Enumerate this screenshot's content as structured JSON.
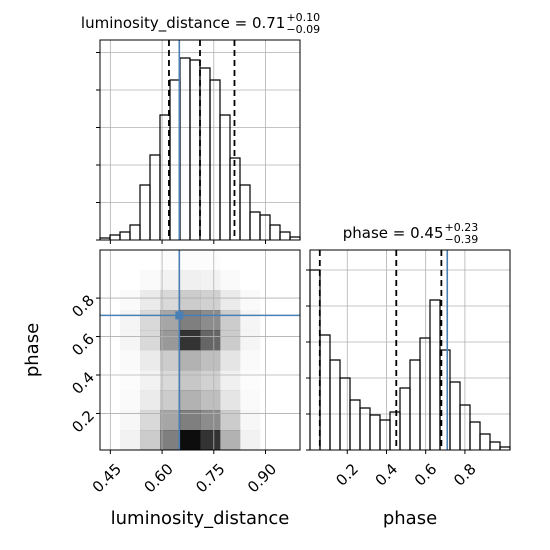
{
  "chart_data": [
    {
      "type": "hist",
      "title": "luminosity_distance = 0.71",
      "title_upper": "+0.10",
      "title_lower": "−0.09",
      "bins": [
        0.42,
        0.449,
        0.478,
        0.507,
        0.536,
        0.565,
        0.594,
        0.623,
        0.652,
        0.681,
        0.71,
        0.739,
        0.768,
        0.797,
        0.826,
        0.855,
        0.884,
        0.913,
        0.942,
        0.971,
        1.0
      ],
      "counts": [
        2,
        5,
        8,
        15,
        55,
        85,
        125,
        160,
        182,
        180,
        172,
        160,
        125,
        82,
        55,
        28,
        25,
        15,
        8,
        3
      ],
      "color": "#000000",
      "xlim": [
        0.42,
        1.0
      ],
      "ylim": [
        0,
        200
      ],
      "xticks": [
        0.45,
        0.6,
        0.75,
        0.9
      ],
      "yticks": [
        0,
        37.5,
        75,
        112.5,
        150,
        187.5
      ],
      "quantiles": [
        0.62,
        0.71,
        0.81
      ],
      "truth": 0.65,
      "truth_color": "#4a7fb5",
      "grid": true
    },
    {
      "type": "hist2d",
      "xlabel": "luminosity_distance",
      "ylabel": "phase",
      "xlim": [
        0.42,
        1.0
      ],
      "ylim": [
        0.01,
        1.05
      ],
      "xticks": [
        {
          "value": 0.45,
          "label": "0.45"
        },
        {
          "value": 0.6,
          "label": "0.60"
        },
        {
          "value": 0.75,
          "label": "0.75"
        },
        {
          "value": 0.9,
          "label": "0.90"
        }
      ],
      "yticks": [
        0.2,
        0.4,
        0.6,
        0.8
      ],
      "density": {
        "xbins": [
          0.42,
          0.478,
          0.536,
          0.594,
          0.652,
          0.71,
          0.768,
          0.826,
          0.884,
          0.942,
          1.0
        ],
        "ybins": [
          0.01,
          0.114,
          0.218,
          0.322,
          0.426,
          0.53,
          0.634,
          0.738,
          0.842,
          0.946,
          1.05
        ],
        "values": [
          [
            0,
            0.05,
            0.2,
            0.5,
            0.95,
            0.8,
            0.3,
            0.05,
            0,
            0
          ],
          [
            0,
            0.03,
            0.15,
            0.35,
            0.5,
            0.45,
            0.2,
            0.03,
            0,
            0
          ],
          [
            0,
            0.02,
            0.08,
            0.2,
            0.3,
            0.25,
            0.1,
            0.02,
            0,
            0
          ],
          [
            0,
            0.01,
            0.05,
            0.15,
            0.22,
            0.18,
            0.06,
            0.01,
            0,
            0
          ],
          [
            0,
            0.02,
            0.08,
            0.2,
            0.3,
            0.25,
            0.1,
            0.02,
            0,
            0
          ],
          [
            0,
            0.04,
            0.15,
            0.4,
            0.8,
            0.6,
            0.2,
            0.04,
            0,
            0
          ],
          [
            0,
            0.04,
            0.15,
            0.35,
            0.5,
            0.45,
            0.2,
            0.04,
            0,
            0
          ],
          [
            0,
            0.02,
            0.08,
            0.15,
            0.2,
            0.18,
            0.08,
            0.02,
            0,
            0
          ],
          [
            0,
            0,
            0.02,
            0.05,
            0.06,
            0.05,
            0.02,
            0,
            0,
            0
          ],
          [
            0,
            0,
            0,
            0.01,
            0.01,
            0.01,
            0,
            0,
            0,
            0
          ]
        ]
      },
      "truth": [
        0.65,
        0.71
      ],
      "truth_color": "#4a7fb5",
      "grid": true
    },
    {
      "type": "hist",
      "title": "phase = 0.45",
      "title_upper": "+0.23",
      "title_lower": "−0.39",
      "xlabel": "phase",
      "bins": [
        0.01,
        0.061,
        0.112,
        0.163,
        0.214,
        0.265,
        0.316,
        0.367,
        0.418,
        0.469,
        0.52,
        0.571,
        0.622,
        0.673,
        0.724,
        0.775,
        0.826,
        0.877,
        0.928,
        0.979,
        1.03
      ],
      "counts": [
        180,
        115,
        90,
        72,
        50,
        42,
        35,
        30,
        38,
        62,
        90,
        112,
        150,
        100,
        68,
        45,
        28,
        16,
        8,
        3
      ],
      "color": "#000000",
      "xlim": [
        0.01,
        1.03
      ],
      "ylim": [
        0,
        200
      ],
      "xticks": [
        0.2,
        0.4,
        0.6,
        0.8
      ],
      "yticks": [
        0,
        36,
        72,
        108,
        144,
        180
      ],
      "quantiles": [
        0.06,
        0.45,
        0.68
      ],
      "truth": 0.71,
      "truth_color": "#4a7fb5",
      "grid": true
    }
  ]
}
